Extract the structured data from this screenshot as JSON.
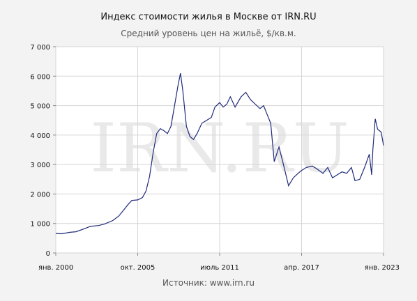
{
  "title": "Индекс стоимости жилья в Москве от IRN.RU",
  "subtitle": "Средний уровень цен на жильё, $/кв.м.",
  "source": "Источник: www.irn.ru",
  "watermark": "IRN.RU",
  "colors": {
    "background": "#f3f3f3",
    "plot_background": "#ffffff",
    "grid": "#d6d6d6",
    "line": "#1f2a7a",
    "watermark": "#e9e9e9"
  },
  "chart_data": {
    "type": "line",
    "title": "Индекс стоимости жилья в Москве от IRN.RU",
    "subtitle": "Средний уровень цен на жильё, $/кв.м.",
    "xlabel": "",
    "ylabel": "",
    "ylim": [
      0,
      7000
    ],
    "xlim": [
      "2000-01",
      "2023-01"
    ],
    "grid": true,
    "y_ticks": [
      0,
      1000,
      2000,
      3000,
      4000,
      5000,
      6000,
      7000
    ],
    "y_tick_labels": [
      "0",
      "1 000",
      "2 000",
      "3 000",
      "4 000",
      "5 000",
      "6 000",
      "7 000"
    ],
    "x_ticks": [
      "2000-01",
      "2005-10",
      "2011-07",
      "2017-04",
      "2023-01"
    ],
    "x_tick_labels": [
      "янв. 2000",
      "окт. 2005",
      "июль 2011",
      "апр. 2017",
      "янв. 2023"
    ],
    "series": [
      {
        "values": [
          [
            "2000-01",
            660
          ],
          [
            "2000-06",
            650
          ],
          [
            "2001-01",
            700
          ],
          [
            "2001-06",
            720
          ],
          [
            "2002-01",
            820
          ],
          [
            "2002-06",
            900
          ],
          [
            "2003-01",
            930
          ],
          [
            "2003-06",
            980
          ],
          [
            "2004-01",
            1100
          ],
          [
            "2004-06",
            1250
          ],
          [
            "2004-10",
            1450
          ],
          [
            "2005-02",
            1650
          ],
          [
            "2005-05",
            1780
          ],
          [
            "2005-10",
            1800
          ],
          [
            "2006-02",
            1880
          ],
          [
            "2006-05",
            2100
          ],
          [
            "2006-08",
            2600
          ],
          [
            "2006-11",
            3400
          ],
          [
            "2007-02",
            4050
          ],
          [
            "2007-05",
            4220
          ],
          [
            "2007-08",
            4150
          ],
          [
            "2007-11",
            4050
          ],
          [
            "2008-02",
            4300
          ],
          [
            "2008-05",
            5000
          ],
          [
            "2008-08",
            5700
          ],
          [
            "2008-10",
            6100
          ],
          [
            "2008-12",
            5500
          ],
          [
            "2009-03",
            4300
          ],
          [
            "2009-06",
            3950
          ],
          [
            "2009-09",
            3850
          ],
          [
            "2009-12",
            4050
          ],
          [
            "2010-04",
            4400
          ],
          [
            "2010-08",
            4500
          ],
          [
            "2010-12",
            4600
          ],
          [
            "2011-03",
            4950
          ],
          [
            "2011-07",
            5100
          ],
          [
            "2011-10",
            4950
          ],
          [
            "2012-01",
            5050
          ],
          [
            "2012-04",
            5300
          ],
          [
            "2012-08",
            4950
          ],
          [
            "2013-01",
            5300
          ],
          [
            "2013-05",
            5450
          ],
          [
            "2013-09",
            5200
          ],
          [
            "2014-01",
            5050
          ],
          [
            "2014-05",
            4900
          ],
          [
            "2014-08",
            5000
          ],
          [
            "2014-11",
            4700
          ],
          [
            "2015-02",
            4400
          ],
          [
            "2015-05",
            3100
          ],
          [
            "2015-09",
            3600
          ],
          [
            "2016-01",
            2950
          ],
          [
            "2016-05",
            2280
          ],
          [
            "2016-09",
            2550
          ],
          [
            "2017-01",
            2700
          ],
          [
            "2017-04",
            2800
          ],
          [
            "2017-08",
            2900
          ],
          [
            "2018-01",
            2950
          ],
          [
            "2018-05",
            2850
          ],
          [
            "2018-10",
            2700
          ],
          [
            "2019-02",
            2900
          ],
          [
            "2019-06",
            2550
          ],
          [
            "2019-10",
            2650
          ],
          [
            "2020-02",
            2750
          ],
          [
            "2020-06",
            2700
          ],
          [
            "2020-10",
            2900
          ],
          [
            "2021-01",
            2450
          ],
          [
            "2021-05",
            2500
          ],
          [
            "2021-09",
            2900
          ],
          [
            "2022-01",
            3350
          ],
          [
            "2022-03",
            2650
          ],
          [
            "2022-04",
            3500
          ],
          [
            "2022-06",
            4550
          ],
          [
            "2022-08",
            4200
          ],
          [
            "2022-11",
            4100
          ],
          [
            "2023-01",
            3650
          ]
        ]
      }
    ]
  }
}
